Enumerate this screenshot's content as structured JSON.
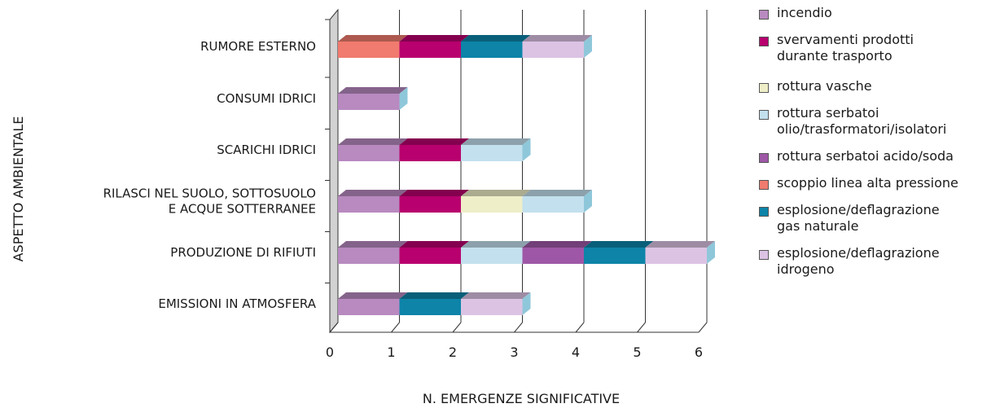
{
  "chart_data": {
    "type": "bar",
    "orientation": "horizontal",
    "stacked": true,
    "xlabel": "N. EMERGENZE SIGNIFICATIVE",
    "ylabel": "ASPETTO AMBIENTALE",
    "xlim": [
      0,
      6
    ],
    "x_ticks": [
      "0",
      "1",
      "2",
      "3",
      "4",
      "5",
      "6"
    ],
    "grid": true,
    "legend_position": "right",
    "categories": [
      "RUMORE ESTERNO",
      "CONSUMI IDRICI",
      "SCARICHI IDRICI",
      "RILASCI NEL SUOLO, SOTTOSUOLO\nE ACQUE SOTTERRANEE",
      "PRODUZIONE DI RIFIUTI",
      "EMISSIONI IN ATMOSFERA"
    ],
    "series": [
      {
        "name": "incendio",
        "color": "#b88ac0",
        "values": [
          0,
          1,
          1,
          1,
          1,
          1
        ]
      },
      {
        "name": "svervamenti prodotti\ndurante trasporto",
        "color": "#b8006e",
        "values": [
          1,
          0,
          1,
          1,
          1,
          0
        ]
      },
      {
        "name": "rottura vasche",
        "color": "#eeeec8",
        "values": [
          0,
          0,
          0,
          1,
          0,
          0
        ]
      },
      {
        "name": "rottura serbatoi\nolio/trasformatori/isolatori",
        "color": "#c3e0ee",
        "values": [
          0,
          0,
          1,
          1,
          1,
          0
        ]
      },
      {
        "name": "rottura serbatoi acido/soda",
        "color": "#9e57a6",
        "values": [
          0,
          0,
          0,
          0,
          1,
          0
        ]
      },
      {
        "name": "scoppio linea alta pressione",
        "color": "#f07b6e",
        "values": [
          1,
          0,
          0,
          0,
          0,
          0
        ]
      },
      {
        "name": "esplosione/deflagrazione\ngas naturale",
        "color": "#0d84a8",
        "values": [
          1,
          0,
          0,
          0,
          1,
          1
        ]
      },
      {
        "name": "esplosione/deflagrazione\nidrogeno",
        "color": "#dcc3e4",
        "values": [
          1,
          0,
          0,
          0,
          1,
          1
        ]
      }
    ],
    "stack_order": [
      [
        "scoppio linea alta pressione",
        "svervamenti prodotti\ndurante trasporto",
        "esplosione/deflagrazione\ngas naturale",
        "esplosione/deflagrazione\nidrogeno"
      ],
      [
        "incendio"
      ],
      [
        "incendio",
        "svervamenti prodotti\ndurante trasporto",
        "rottura serbatoi\nolio/trasformatori/isolatori"
      ],
      [
        "incendio",
        "svervamenti prodotti\ndurante trasporto",
        "rottura vasche",
        "rottura serbatoi\nolio/trasformatori/isolatori"
      ],
      [
        "incendio",
        "svervamenti prodotti\ndurante trasporto",
        "rottura serbatoi\nolio/trasformatori/isolatori",
        "rottura serbatoi acido/soda",
        "esplosione/deflagrazione\ngas naturale",
        "esplosione/deflagrazione\nidrogeno"
      ],
      [
        "incendio",
        "esplosione/deflagrazione\ngas naturale",
        "esplosione/deflagrazione\nidrogeno"
      ]
    ]
  }
}
